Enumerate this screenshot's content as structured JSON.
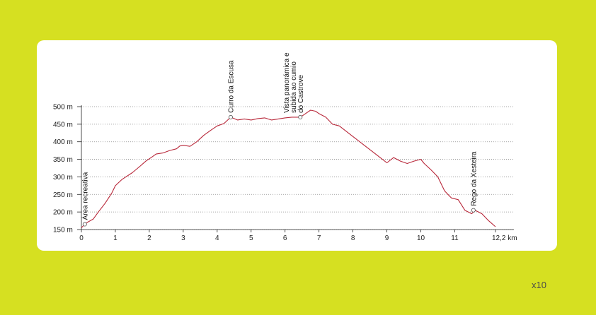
{
  "zoom_label": "x10",
  "chart_data": {
    "type": "line",
    "x_ticks": [
      "0",
      "1",
      "2",
      "3",
      "4",
      "5",
      "6",
      "7",
      "8",
      "9",
      "10",
      "11",
      "12,2 km"
    ],
    "y_ticks": [
      "150 m",
      "200 m",
      "250 m",
      "300 m",
      "350 m",
      "400 m",
      "450 m",
      "500 m"
    ],
    "xlim": [
      0,
      12.2
    ],
    "ylim": [
      150,
      500
    ],
    "grid": "horizontal dotted",
    "line_color": "#b8283a",
    "series": [
      {
        "x": [
          0,
          0.1,
          0.2,
          0.35,
          0.5,
          0.7,
          0.9,
          1.0,
          1.2,
          1.5,
          1.7,
          1.9,
          2.1,
          2.2,
          2.4,
          2.6,
          2.8,
          2.9,
          3.0,
          3.2,
          3.4,
          3.6,
          3.8,
          4.0,
          4.2,
          4.4,
          4.6,
          4.8,
          5.0,
          5.2,
          5.4,
          5.6,
          5.8,
          6.0,
          6.2,
          6.45,
          6.6,
          6.75,
          6.9,
          7.0,
          7.2,
          7.4,
          7.6,
          7.8,
          8.0,
          8.2,
          8.4,
          8.6,
          8.8,
          9.0,
          9.2,
          9.4,
          9.6,
          9.8,
          10.0,
          10.1,
          10.3,
          10.5,
          10.7,
          10.9,
          11.1,
          11.3,
          11.5,
          11.6,
          11.8,
          12.0,
          12.2
        ],
        "y": [
          155,
          165,
          172,
          180,
          200,
          225,
          255,
          275,
          293,
          312,
          328,
          345,
          358,
          365,
          368,
          375,
          380,
          388,
          390,
          387,
          400,
          418,
          432,
          445,
          452,
          470,
          462,
          465,
          462,
          466,
          468,
          462,
          465,
          468,
          470,
          470,
          480,
          490,
          487,
          480,
          470,
          450,
          445,
          430,
          415,
          400,
          385,
          370,
          355,
          340,
          355,
          345,
          338,
          345,
          350,
          338,
          320,
          300,
          260,
          240,
          235,
          205,
          195,
          205,
          195,
          175,
          158
        ]
      }
    ],
    "annotations": [
      {
        "label": "Área recreativa",
        "x": 0.1,
        "y": 165
      },
      {
        "label": "Curro da Escusa",
        "x": 4.4,
        "y": 470
      },
      {
        "label": "Vista panorámica e subida ao cumio do Castrove",
        "x": 6.45,
        "y": 470,
        "lines": [
          "Vista panorámica e",
          "subida ao cumio",
          "do Castrove"
        ]
      },
      {
        "label": "Rego da Xesteira",
        "x": 11.55,
        "y": 205
      }
    ]
  }
}
